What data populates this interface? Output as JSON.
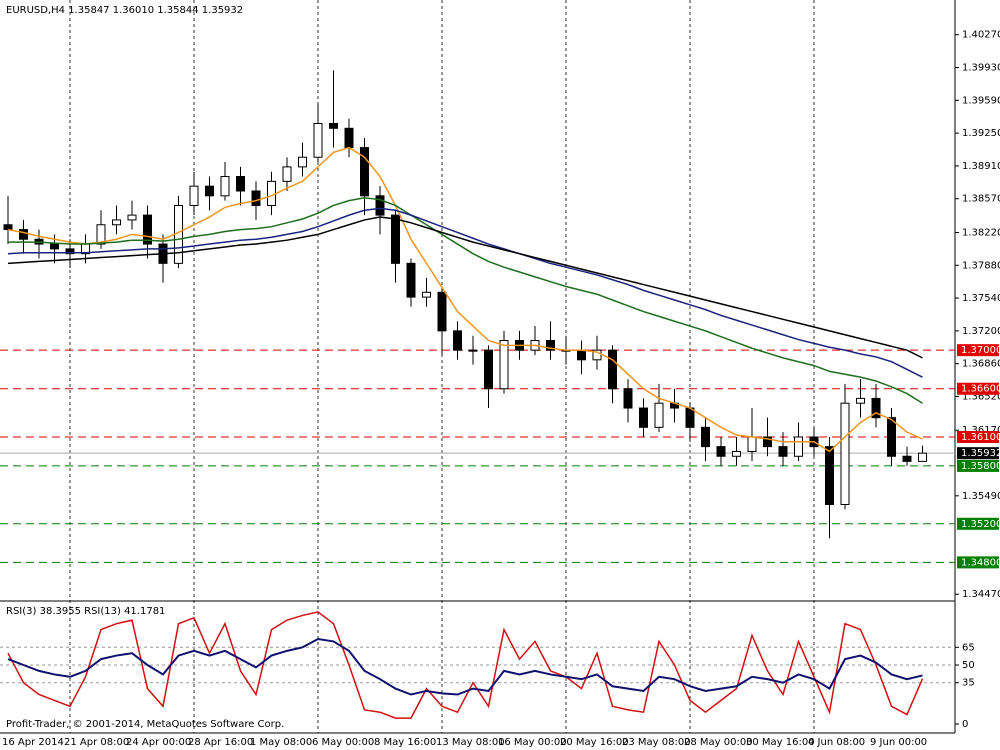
{
  "chart_data": [
    {
      "type": "candlestick",
      "title": "EURUSD,H4  1.35847 1.36010 1.35844 1.35932",
      "categories": [
        "16 Apr 2014",
        null,
        null,
        null,
        "21 Apr 08:00",
        null,
        null,
        null,
        "24 Apr 00:00",
        null,
        null,
        null,
        "28 Apr 16:00",
        null,
        null,
        null,
        "1 May 08:00",
        null,
        null,
        null,
        "6 May 00:00",
        null,
        null,
        null,
        "8 May 16:00",
        null,
        null,
        null,
        "13 May 08:00",
        null,
        null,
        null,
        "16 May 00:00",
        null,
        null,
        null,
        "20 May 16:00",
        null,
        null,
        null,
        "23 May 08:00",
        null,
        null,
        null,
        "28 May 00:00",
        null,
        null,
        null,
        "30 May 16:00",
        null,
        null,
        null,
        "4 Jun 08:00",
        null,
        null,
        null,
        "9 Jun 00:00",
        null,
        null,
        null
      ],
      "open": [
        1.383,
        1.3825,
        1.3815,
        1.381,
        1.3805,
        1.38,
        1.381,
        1.383,
        1.3835,
        1.384,
        1.381,
        1.379,
        1.385,
        1.387,
        1.386,
        1.388,
        1.3865,
        1.385,
        1.3875,
        1.389,
        1.39,
        1.3935,
        1.393,
        1.391,
        1.386,
        1.384,
        1.379,
        1.3755,
        1.376,
        1.372,
        1.37,
        1.37,
        1.366,
        1.371,
        1.37,
        1.371,
        1.37,
        1.37,
        1.369,
        1.37,
        1.366,
        1.364,
        1.362,
        1.3645,
        1.364,
        1.362,
        1.36,
        1.359,
        1.3595,
        1.361,
        1.36,
        1.359,
        1.361,
        1.36,
        1.354,
        1.3645,
        1.365,
        1.363,
        1.359,
        1.35847
      ],
      "high": [
        1.386,
        1.3835,
        1.3825,
        1.382,
        1.3815,
        1.382,
        1.3845,
        1.385,
        1.3855,
        1.385,
        1.382,
        1.386,
        1.3885,
        1.388,
        1.3895,
        1.389,
        1.3875,
        1.3885,
        1.39,
        1.3915,
        1.3955,
        1.399,
        1.394,
        1.392,
        1.387,
        1.3845,
        1.3795,
        1.3775,
        1.3765,
        1.373,
        1.3715,
        1.3705,
        1.372,
        1.372,
        1.3725,
        1.373,
        1.3715,
        1.371,
        1.3715,
        1.3705,
        1.367,
        1.365,
        1.3665,
        1.366,
        1.3645,
        1.363,
        1.361,
        1.361,
        1.364,
        1.363,
        1.3615,
        1.3625,
        1.362,
        1.361,
        1.3665,
        1.367,
        1.3665,
        1.364,
        1.36,
        1.3601
      ],
      "low": [
        1.381,
        1.38,
        1.3795,
        1.379,
        1.3785,
        1.379,
        1.3805,
        1.382,
        1.3825,
        1.3795,
        1.377,
        1.3785,
        1.384,
        1.3845,
        1.3855,
        1.385,
        1.3835,
        1.384,
        1.3865,
        1.388,
        1.3895,
        1.391,
        1.39,
        1.384,
        1.382,
        1.377,
        1.3745,
        1.3745,
        1.3695,
        1.369,
        1.3685,
        1.364,
        1.3655,
        1.369,
        1.3695,
        1.369,
        1.3685,
        1.3675,
        1.368,
        1.3645,
        1.3625,
        1.361,
        1.3615,
        1.3625,
        1.3605,
        1.3585,
        1.358,
        1.358,
        1.3585,
        1.359,
        1.358,
        1.3585,
        1.359,
        1.3505,
        1.3535,
        1.363,
        1.362,
        1.358,
        1.358,
        1.35844
      ],
      "close": [
        1.3825,
        1.3815,
        1.381,
        1.3805,
        1.38,
        1.381,
        1.383,
        1.3835,
        1.384,
        1.381,
        1.379,
        1.385,
        1.387,
        1.386,
        1.388,
        1.3865,
        1.385,
        1.3875,
        1.389,
        1.39,
        1.3935,
        1.393,
        1.391,
        1.386,
        1.384,
        1.379,
        1.3755,
        1.376,
        1.372,
        1.37,
        1.37,
        1.366,
        1.371,
        1.37,
        1.371,
        1.37,
        1.37,
        1.369,
        1.37,
        1.366,
        1.364,
        1.362,
        1.3645,
        1.364,
        1.362,
        1.36,
        1.359,
        1.3595,
        1.361,
        1.36,
        1.359,
        1.361,
        1.36,
        1.354,
        1.3645,
        1.365,
        1.363,
        1.359,
        1.35847,
        1.35932
      ],
      "series": [
        {
          "color": "#f0961e",
          "values": [
            1.3825,
            1.3822,
            1.3818,
            1.3815,
            1.3812,
            1.381,
            1.3812,
            1.3815,
            1.382,
            1.3818,
            1.3815,
            1.3822,
            1.383,
            1.3838,
            1.3848,
            1.3852,
            1.3855,
            1.386,
            1.3868,
            1.3875,
            1.389,
            1.3905,
            1.391,
            1.39,
            1.388,
            1.385,
            1.3815,
            1.379,
            1.3765,
            1.374,
            1.3725,
            1.371,
            1.3705,
            1.3705,
            1.3705,
            1.3702,
            1.37,
            1.37,
            1.3698,
            1.369,
            1.3675,
            1.366,
            1.365,
            1.3645,
            1.364,
            1.363,
            1.362,
            1.3612,
            1.361,
            1.3608,
            1.3605,
            1.3605,
            1.3605,
            1.3595,
            1.361,
            1.3625,
            1.3635,
            1.3628,
            1.3615,
            1.3608
          ]
        },
        {
          "color": "#1e6e1e",
          "values": [
            1.3812,
            1.3812,
            1.3812,
            1.3811,
            1.381,
            1.381,
            1.3811,
            1.3812,
            1.3814,
            1.3814,
            1.3813,
            1.3815,
            1.3818,
            1.382,
            1.3823,
            1.3825,
            1.3826,
            1.3828,
            1.3832,
            1.3836,
            1.3842,
            1.385,
            1.3855,
            1.3858,
            1.3856,
            1.385,
            1.384,
            1.383,
            1.382,
            1.381,
            1.38,
            1.3792,
            1.3786,
            1.3781,
            1.3776,
            1.3771,
            1.3766,
            1.3762,
            1.3758,
            1.3752,
            1.3746,
            1.374,
            1.3735,
            1.373,
            1.3725,
            1.372,
            1.3714,
            1.3708,
            1.3702,
            1.3697,
            1.3692,
            1.3688,
            1.3684,
            1.3678,
            1.3675,
            1.3672,
            1.3668,
            1.3662,
            1.3655,
            1.3645
          ]
        },
        {
          "color": "#1a237e",
          "values": [
            1.38,
            1.3801,
            1.3801,
            1.3801,
            1.3801,
            1.3801,
            1.3802,
            1.3803,
            1.3804,
            1.3805,
            1.3805,
            1.3806,
            1.3808,
            1.381,
            1.3812,
            1.3814,
            1.3815,
            1.3817,
            1.382,
            1.3823,
            1.3828,
            1.3834,
            1.384,
            1.3845,
            1.3847,
            1.3845,
            1.384,
            1.3834,
            1.3828,
            1.3822,
            1.3816,
            1.381,
            1.3805,
            1.38,
            1.3795,
            1.379,
            1.3786,
            1.3782,
            1.3778,
            1.3773,
            1.3768,
            1.3762,
            1.3757,
            1.3752,
            1.3747,
            1.3742,
            1.3736,
            1.3731,
            1.3726,
            1.3721,
            1.3716,
            1.3711,
            1.3707,
            1.3703,
            1.37,
            1.3696,
            1.3693,
            1.3688,
            1.368,
            1.3672
          ]
        },
        {
          "color": "#000000",
          "values": [
            1.379,
            1.3791,
            1.3792,
            1.3793,
            1.3794,
            1.3795,
            1.3796,
            1.3797,
            1.3798,
            1.3799,
            1.38,
            1.3801,
            1.3803,
            1.3805,
            1.3807,
            1.3809,
            1.381,
            1.3812,
            1.3814,
            1.3817,
            1.382,
            1.3825,
            1.383,
            1.3835,
            1.3838,
            1.3836,
            1.3832,
            1.3827,
            1.3822,
            1.3817,
            1.3812,
            1.3808,
            1.3804,
            1.38,
            1.3796,
            1.3792,
            1.3788,
            1.3784,
            1.378,
            1.3776,
            1.3772,
            1.3768,
            1.3764,
            1.376,
            1.3756,
            1.3752,
            1.3748,
            1.3744,
            1.374,
            1.3736,
            1.3732,
            1.3728,
            1.3724,
            1.372,
            1.3716,
            1.3712,
            1.3708,
            1.3704,
            1.37,
            1.3692
          ]
        }
      ],
      "levels": [
        {
          "value": 1.37,
          "label": "1.37000",
          "color": "#e00000"
        },
        {
          "value": 1.366,
          "label": "1.36600",
          "color": "#e00000"
        },
        {
          "value": 1.361,
          "label": "1.36100",
          "color": "#e00000"
        },
        {
          "value": 1.358,
          "label": "1.35800",
          "color": "#008000"
        },
        {
          "value": 1.352,
          "label": "1.35200",
          "color": "#008000"
        },
        {
          "value": 1.348,
          "label": "1.34800",
          "color": "#008000"
        }
      ],
      "ylim": [
        1.3441,
        1.4063
      ],
      "yticks": [
        {
          "value": 1.4027,
          "label": "1.40270"
        },
        {
          "value": 1.3993,
          "label": "1.39930"
        },
        {
          "value": 1.3959,
          "label": "1.39590"
        },
        {
          "value": 1.3925,
          "label": "1.39250"
        },
        {
          "value": 1.3891,
          "label": "1.38910"
        },
        {
          "value": 1.3857,
          "label": "1.38570"
        },
        {
          "value": 1.3822,
          "label": "1.38220"
        },
        {
          "value": 1.3788,
          "label": "1.37880"
        },
        {
          "value": 1.3754,
          "label": "1.37540"
        },
        {
          "value": 1.372,
          "label": "1.37200"
        },
        {
          "value": 1.3686,
          "label": "1.36860"
        },
        {
          "value": 1.3652,
          "label": "1.36520"
        },
        {
          "value": 1.3617,
          "label": "1.36170"
        },
        {
          "value": 1.3549,
          "label": "1.35490"
        },
        {
          "value": 1.3447,
          "label": "1.34470"
        }
      ]
    },
    {
      "type": "line",
      "title": "RSI(3) 38.3955  RSI(13) 41.1781",
      "footer": "Profit-Trader, © 2001-2014, MetaQuotes Software Corp.",
      "series": [
        {
          "color": "#d01010",
          "values": [
            60,
            35,
            25,
            20,
            15,
            40,
            80,
            85,
            88,
            30,
            15,
            85,
            90,
            60,
            85,
            45,
            25,
            80,
            88,
            92,
            95,
            85,
            50,
            12,
            10,
            5,
            5,
            30,
            15,
            10,
            35,
            15,
            80,
            55,
            70,
            45,
            40,
            30,
            60,
            15,
            12,
            10,
            70,
            50,
            20,
            10,
            20,
            30,
            75,
            45,
            25,
            70,
            40,
            10,
            85,
            80,
            50,
            15,
            8,
            38.3955
          ]
        },
        {
          "color": "#10106e",
          "values": [
            55,
            50,
            45,
            42,
            40,
            45,
            55,
            58,
            60,
            50,
            42,
            58,
            62,
            58,
            62,
            55,
            48,
            58,
            62,
            65,
            72,
            70,
            62,
            45,
            38,
            30,
            25,
            28,
            26,
            25,
            30,
            28,
            45,
            42,
            45,
            42,
            40,
            38,
            42,
            32,
            30,
            28,
            40,
            38,
            32,
            28,
            30,
            32,
            40,
            38,
            35,
            42,
            38,
            30,
            55,
            58,
            52,
            42,
            38,
            41.1781
          ]
        }
      ],
      "ylim": [
        0,
        100
      ],
      "yticks": [
        65,
        50,
        35,
        0
      ]
    }
  ]
}
